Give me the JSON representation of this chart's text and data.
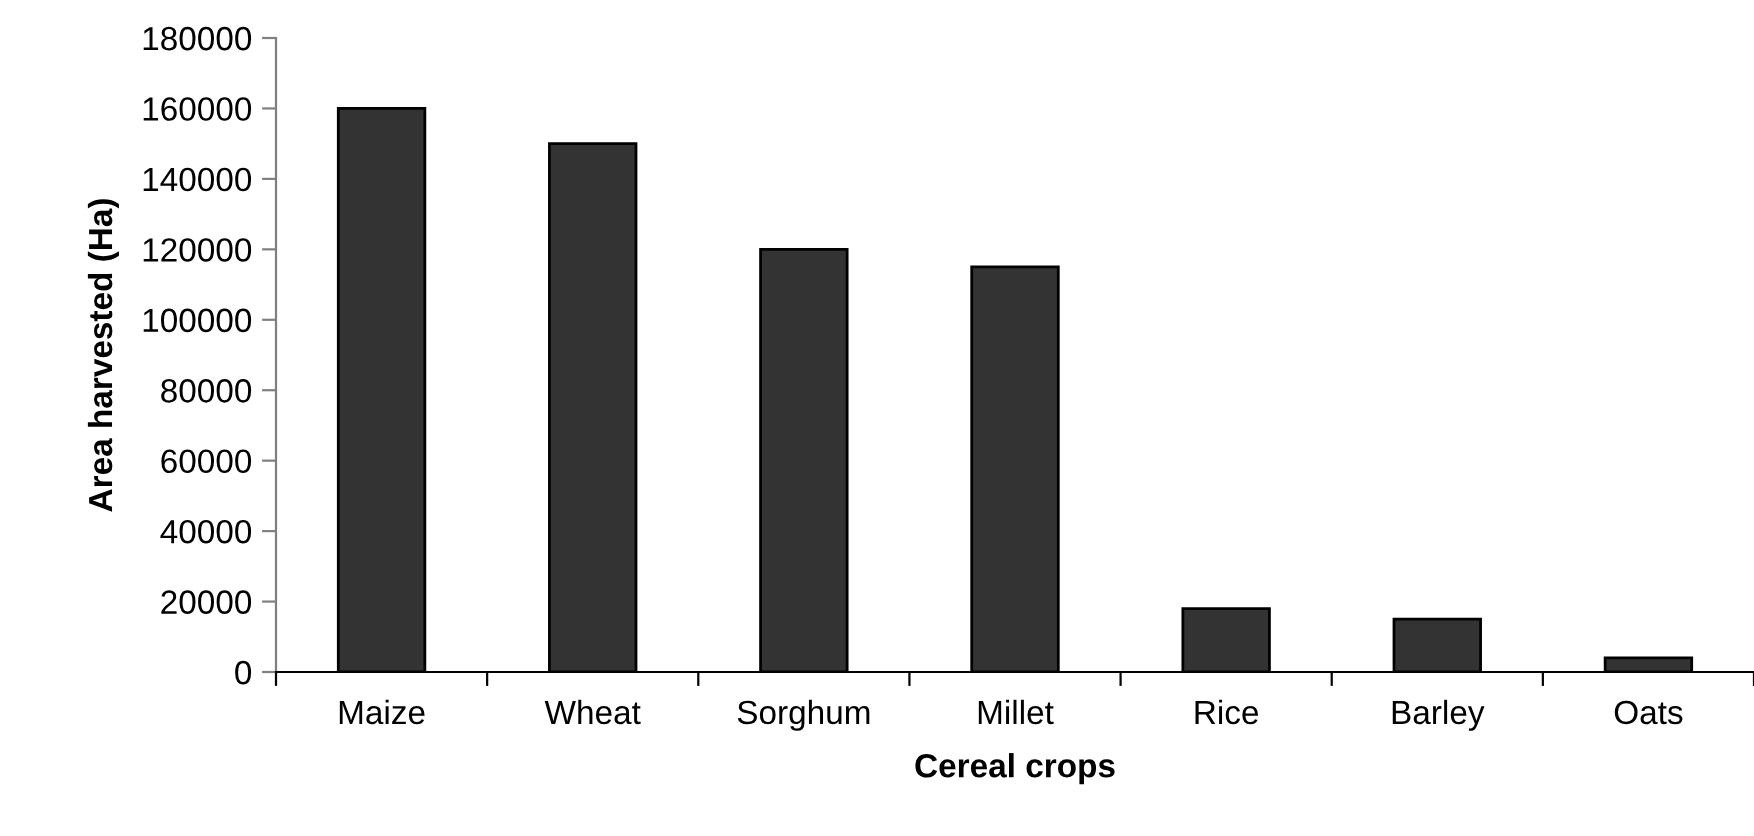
{
  "chart_data": {
    "type": "bar",
    "xlabel": "Cereal crops",
    "ylabel": "Area harvested (Ha)",
    "categories": [
      "Maize",
      "Wheat",
      "Sorghum",
      "Millet",
      "Rice",
      "Barley",
      "Oats"
    ],
    "values": [
      160000,
      150000,
      120000,
      115000,
      18000,
      15000,
      4000
    ],
    "color": "#333333",
    "ylim": [
      0,
      180000
    ],
    "yticks": [
      0,
      20000,
      40000,
      60000,
      80000,
      100000,
      120000,
      140000,
      160000,
      180000
    ],
    "grid": false
  }
}
